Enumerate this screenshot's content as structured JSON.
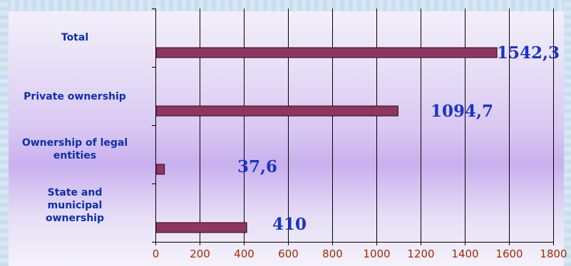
{
  "chart_data": {
    "type": "bar",
    "orientation": "horizontal",
    "categories": [
      "Total",
      "Private ownership",
      "Ownership of legal entities",
      "State and municipal ownership"
    ],
    "category_lines": [
      [
        "Total"
      ],
      [
        "Private ownership"
      ],
      [
        "Ownership of legal",
        "entities"
      ],
      [
        "State and",
        "municipal",
        "ownership"
      ]
    ],
    "values": [
      1542.3,
      1094.7,
      37.6,
      410
    ],
    "value_labels": [
      "1542,3",
      "1094,7",
      "37,6",
      "410"
    ],
    "xlim": [
      0,
      1800
    ],
    "xticks": [
      0,
      200,
      400,
      600,
      800,
      1000,
      1200,
      1400,
      1600,
      1800
    ],
    "grid": true,
    "title": "",
    "xlabel": "",
    "ylabel": "",
    "bar_color": "#8e3560",
    "tick_color": "#a52a00",
    "label_color": "#0a2fae",
    "value_color": "#1a33c4"
  }
}
